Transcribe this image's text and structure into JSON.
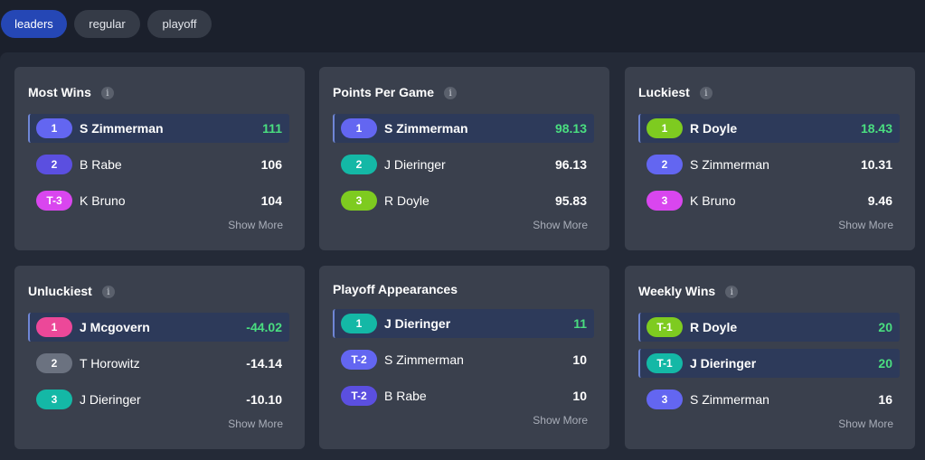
{
  "tabs": [
    {
      "label": "leaders"
    },
    {
      "label": "regular"
    },
    {
      "label": "playoff"
    }
  ],
  "colors": {
    "active_tab": "#2547b5",
    "highlight_value": "#4ade80",
    "badge_indigo": "#6366f1",
    "badge_violet": "#5b4fe0",
    "badge_teal": "#14b8a6",
    "badge_lime": "#7ecb20",
    "badge_magenta": "#d946ef",
    "badge_pink": "#ec4899",
    "badge_gray": "#6b7280"
  },
  "cards": [
    {
      "title": "Most Wins",
      "info_icon": "info-icon",
      "show_more": "Show More",
      "rows": [
        {
          "rank": "1",
          "name": "S Zimmerman",
          "value": "111",
          "highlight": true,
          "badge_color": "#6366f1"
        },
        {
          "rank": "2",
          "name": "B Rabe",
          "value": "106",
          "highlight": false,
          "badge_color": "#5b4fe0"
        },
        {
          "rank": "T-3",
          "name": "K Bruno",
          "value": "104",
          "highlight": false,
          "badge_color": "#d946ef"
        }
      ]
    },
    {
      "title": "Points Per Game",
      "info_icon": "info-icon",
      "show_more": "Show More",
      "rows": [
        {
          "rank": "1",
          "name": "S Zimmerman",
          "value": "98.13",
          "highlight": true,
          "badge_color": "#6366f1"
        },
        {
          "rank": "2",
          "name": "J Dieringer",
          "value": "96.13",
          "highlight": false,
          "badge_color": "#14b8a6"
        },
        {
          "rank": "3",
          "name": "R Doyle",
          "value": "95.83",
          "highlight": false,
          "badge_color": "#7ecb20"
        }
      ]
    },
    {
      "title": "Luckiest",
      "info_icon": "info-icon",
      "show_more": "Show More",
      "rows": [
        {
          "rank": "1",
          "name": "R Doyle",
          "value": "18.43",
          "highlight": true,
          "badge_color": "#7ecb20"
        },
        {
          "rank": "2",
          "name": "S Zimmerman",
          "value": "10.31",
          "highlight": false,
          "badge_color": "#6366f1"
        },
        {
          "rank": "3",
          "name": "K Bruno",
          "value": "9.46",
          "highlight": false,
          "badge_color": "#d946ef"
        }
      ]
    },
    {
      "title": "Unluckiest",
      "info_icon": "info-icon",
      "show_more": "Show More",
      "rows": [
        {
          "rank": "1",
          "name": "J Mcgovern",
          "value": "-44.02",
          "highlight": true,
          "badge_color": "#ec4899"
        },
        {
          "rank": "2",
          "name": "T Horowitz",
          "value": "-14.14",
          "highlight": false,
          "badge_color": "#6b7280"
        },
        {
          "rank": "3",
          "name": "J Dieringer",
          "value": "-10.10",
          "highlight": false,
          "badge_color": "#14b8a6"
        }
      ]
    },
    {
      "title": "Playoff Appearances",
      "info_icon": "",
      "show_more": "Show More",
      "rows": [
        {
          "rank": "1",
          "name": "J Dieringer",
          "value": "11",
          "highlight": true,
          "badge_color": "#14b8a6"
        },
        {
          "rank": "T-2",
          "name": "S Zimmerman",
          "value": "10",
          "highlight": false,
          "badge_color": "#6366f1"
        },
        {
          "rank": "T-2",
          "name": "B Rabe",
          "value": "10",
          "highlight": false,
          "badge_color": "#5b4fe0"
        }
      ]
    },
    {
      "title": "Weekly Wins",
      "info_icon": "info-icon",
      "show_more": "Show More",
      "rows": [
        {
          "rank": "T-1",
          "name": "R Doyle",
          "value": "20",
          "highlight": true,
          "badge_color": "#7ecb20"
        },
        {
          "rank": "T-1",
          "name": "J Dieringer",
          "value": "20",
          "highlight": true,
          "badge_color": "#14b8a6"
        },
        {
          "rank": "3",
          "name": "S Zimmerman",
          "value": "16",
          "highlight": false,
          "badge_color": "#6366f1"
        }
      ]
    }
  ]
}
